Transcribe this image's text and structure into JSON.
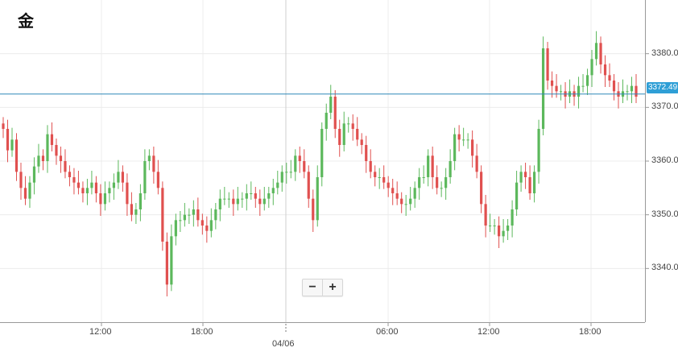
{
  "symbol": "金",
  "current_price": "3372.49",
  "zoom": {
    "minus": "−",
    "plus": "+"
  },
  "colors": {
    "up": "#5cb85c",
    "down": "#e0504f",
    "price_line": "#2f88b8",
    "grid": "#ececec",
    "axis": "#999999"
  },
  "chart_data": {
    "type": "candlestick",
    "title": "金",
    "x_ticks": [
      "12:00",
      "18:00",
      "06:00",
      "12:00",
      "18:00"
    ],
    "date_marker": "04/06",
    "y_ticks": [
      3340,
      3350,
      3360,
      3370,
      3380
    ],
    "ylim": [
      3330,
      3390
    ],
    "last_price": 3372.49,
    "grid": true,
    "closes": [
      3366,
      3362,
      3364,
      3358,
      3355,
      3353,
      3356,
      3359,
      3361,
      3360,
      3365,
      3363,
      3361,
      3360,
      3358,
      3357,
      3356,
      3355,
      3354,
      3355,
      3356,
      3354,
      3352,
      3354,
      3355,
      3356,
      3358,
      3356,
      3352,
      3350,
      3351,
      3354,
      3360,
      3361,
      3358,
      3355,
      3345,
      3337,
      3346,
      3349,
      3349,
      3350,
      3350,
      3351,
      3349,
      3348,
      3347,
      3349,
      3351,
      3353,
      3353,
      3353,
      3352,
      3353,
      3353,
      3354,
      3354,
      3353,
      3352,
      3353,
      3354,
      3355,
      3356,
      3358,
      3358,
      3358,
      3361,
      3360,
      3358,
      3353,
      3349,
      3357,
      3366,
      3369,
      3372,
      3366,
      3363,
      3367,
      3367,
      3366,
      3364,
      3363,
      3360,
      3358,
      3357,
      3357,
      3356,
      3355,
      3354,
      3353,
      3352,
      3352,
      3353,
      3355,
      3357,
      3357,
      3361,
      3357,
      3355,
      3355,
      3357,
      3360,
      3365,
      3364,
      3364,
      3364,
      3361,
      3358,
      3352,
      3348,
      3348,
      3348,
      3346,
      3347,
      3348,
      3351,
      3356,
      3358,
      3357,
      3354,
      3358,
      3366,
      3381,
      3375,
      3374,
      3373,
      3373,
      3372,
      3373,
      3372,
      3374,
      3374,
      3376,
      3379,
      3382,
      3378,
      3376,
      3375,
      3373,
      3372,
      3373,
      3373,
      3374,
      3372
    ]
  }
}
